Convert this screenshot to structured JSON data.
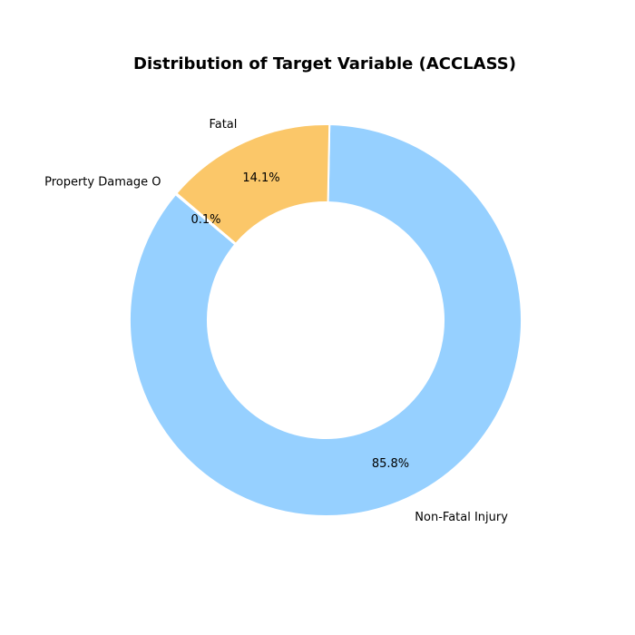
{
  "chart_data": {
    "type": "pie",
    "title": "Distribution of Target Variable (ACCLASS)",
    "donut": true,
    "start_angle_deg": 140,
    "direction": "counterclockwise",
    "slices": [
      {
        "label": "Non-Fatal Injury",
        "value": 85.8,
        "pct_label": "85.8%",
        "color": "#96D0FF"
      },
      {
        "label": "Fatal",
        "value": 14.1,
        "pct_label": "14.1%",
        "color": "#FBC769"
      },
      {
        "label": "Property Damage O",
        "value": 0.1,
        "pct_label": "0.1%",
        "color": "#F2F7A8"
      }
    ]
  }
}
